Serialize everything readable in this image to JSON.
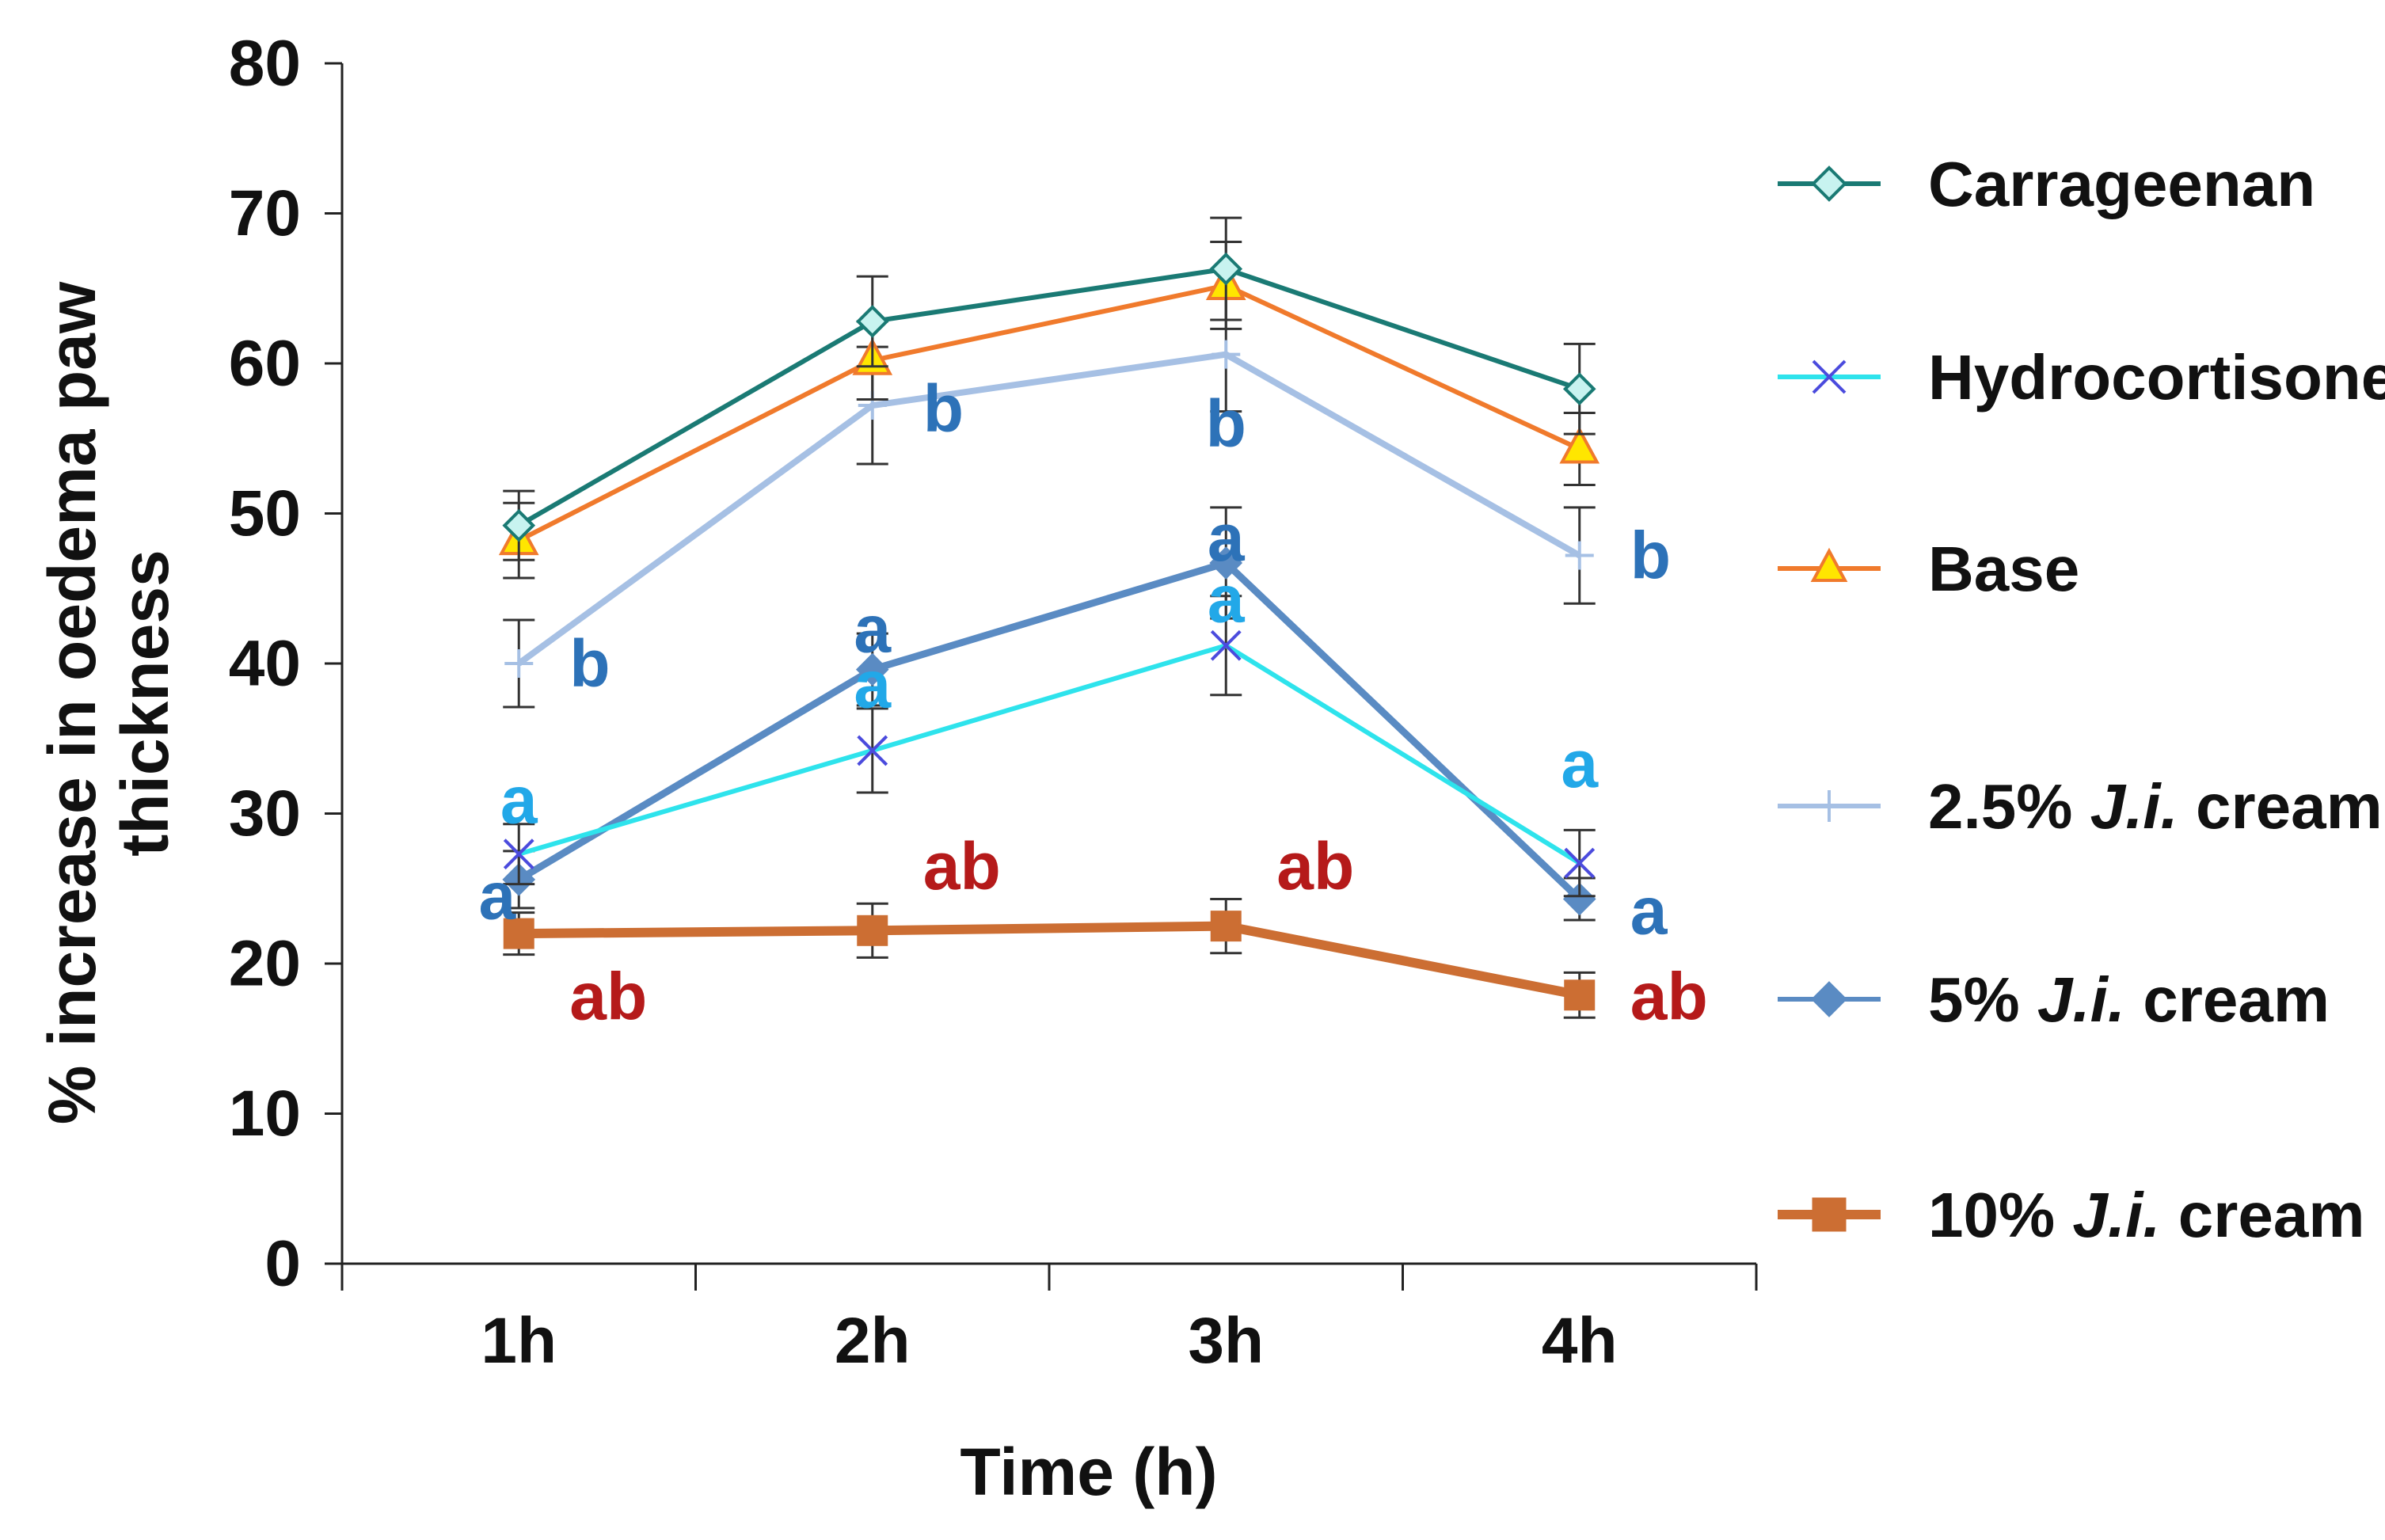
{
  "chart_data": {
    "type": "line",
    "xlabel": "Time (h)",
    "ylabel_lines": [
      "% increase in oedema paw",
      "thickness"
    ],
    "categories": [
      "1h",
      "2h",
      "3h",
      "4h"
    ],
    "ylim": [
      0,
      80
    ],
    "yticks": [
      "0",
      "10",
      "20",
      "30",
      "40",
      "50",
      "60",
      "70",
      "80"
    ],
    "grid": false,
    "legend_position": "right",
    "series": [
      {
        "name": "Carrageenan",
        "legend_parts": [
          {
            "text": "Carrageenan",
            "italic": false
          }
        ],
        "color": "#1a7a74",
        "marker": "diamond-open",
        "marker_fill": "#c8f3f0",
        "values": [
          49.2,
          62.8,
          66.3,
          58.3
        ],
        "errors": [
          2.3,
          3.0,
          3.4,
          3.0
        ]
      },
      {
        "name": "Hydrocortisone",
        "legend_parts": [
          {
            "text": "Hydrocortisone",
            "italic": false
          }
        ],
        "color": "#2ee3ec",
        "marker": "x",
        "marker_fill": "#4b4bdd",
        "values": [
          27.3,
          34.2,
          41.2,
          26.7
        ],
        "errors": [
          2.0,
          2.8,
          3.3,
          2.2
        ]
      },
      {
        "name": "Base",
        "legend_parts": [
          {
            "text": "Base",
            "italic": false
          }
        ],
        "color": "#f07a2c",
        "marker": "triangle",
        "marker_fill": "#ffe600",
        "values": [
          48.2,
          60.2,
          65.2,
          54.3
        ],
        "errors": [
          2.5,
          2.6,
          2.9,
          2.4
        ]
      },
      {
        "name": "2.5% J.i. cream",
        "legend_parts": [
          {
            "text": "2.5% ",
            "italic": false
          },
          {
            "text": "J.i.",
            "italic": true
          },
          {
            "text": " cream",
            "italic": false
          }
        ],
        "color": "#a6c0e4",
        "marker": "plus",
        "marker_fill": "#a6c0e4",
        "values": [
          40.0,
          57.2,
          60.6,
          47.2
        ],
        "errors": [
          2.9,
          3.9,
          3.8,
          3.2
        ]
      },
      {
        "name": "5% J.i. cream",
        "legend_parts": [
          {
            "text": "5% ",
            "italic": false
          },
          {
            "text": "J.i.",
            "italic": true
          },
          {
            "text": " cream",
            "italic": false
          }
        ],
        "color": "#5a8bc3",
        "marker": "diamond",
        "marker_fill": "#5a8bc3",
        "values": [
          25.6,
          39.6,
          46.7,
          24.3
        ],
        "errors": [
          1.9,
          2.4,
          3.7,
          1.4
        ]
      },
      {
        "name": "10% J.i. cream",
        "legend_parts": [
          {
            "text": "10% ",
            "italic": false
          },
          {
            "text": "J.i.",
            "italic": true
          },
          {
            "text": " cream",
            "italic": false
          }
        ],
        "color": "#cc6e33",
        "marker": "square",
        "marker_fill": "#cc6e33",
        "values": [
          22.0,
          22.2,
          22.5,
          17.9
        ],
        "errors": [
          1.4,
          1.8,
          1.8,
          1.5
        ]
      }
    ],
    "annotations": [
      {
        "text": "a",
        "x": "1h",
        "y": 30.9,
        "color": "#22a8e8",
        "anchor": "middle"
      },
      {
        "text": "a",
        "x": "1h",
        "y": 24.5,
        "color": "#2d72b8",
        "anchor": "end"
      },
      {
        "text": "ab",
        "x": "1h",
        "y": 17.8,
        "color": "#b51a1a",
        "anchor": "start"
      },
      {
        "text": "b",
        "x": "1h",
        "y": 40.0,
        "color": "#2d72b8",
        "anchor": "start"
      },
      {
        "text": "a",
        "x": "2h",
        "y": 42.3,
        "color": "#2d72b8",
        "anchor": "middle"
      },
      {
        "text": "a",
        "x": "2h",
        "y": 38.6,
        "color": "#22a8e8",
        "anchor": "middle"
      },
      {
        "text": "b",
        "x": "2h",
        "y": 57.0,
        "color": "#2d72b8",
        "anchor": "start"
      },
      {
        "text": "ab",
        "x": "2h",
        "y": 26.5,
        "color": "#b51a1a",
        "anchor": "start"
      },
      {
        "text": "b",
        "x": "3h",
        "y": 56.0,
        "color": "#2d72b8",
        "anchor": "middle"
      },
      {
        "text": "a",
        "x": "3h",
        "y": 48.4,
        "color": "#2d72b8",
        "anchor": "middle"
      },
      {
        "text": "a",
        "x": "3h",
        "y": 44.3,
        "color": "#22a8e8",
        "anchor": "middle"
      },
      {
        "text": "ab",
        "x": "3h",
        "y": 26.5,
        "color": "#b51a1a",
        "anchor": "start"
      },
      {
        "text": "b",
        "x": "4h",
        "y": 47.2,
        "color": "#2d72b8",
        "anchor": "start"
      },
      {
        "text": "a",
        "x": "4h",
        "y": 33.3,
        "color": "#22a8e8",
        "anchor": "middle"
      },
      {
        "text": "a",
        "x": "4h",
        "y": 23.5,
        "color": "#2d72b8",
        "anchor": "start"
      },
      {
        "text": "ab",
        "x": "4h",
        "y": 17.8,
        "color": "#b51a1a",
        "anchor": "start"
      }
    ]
  }
}
